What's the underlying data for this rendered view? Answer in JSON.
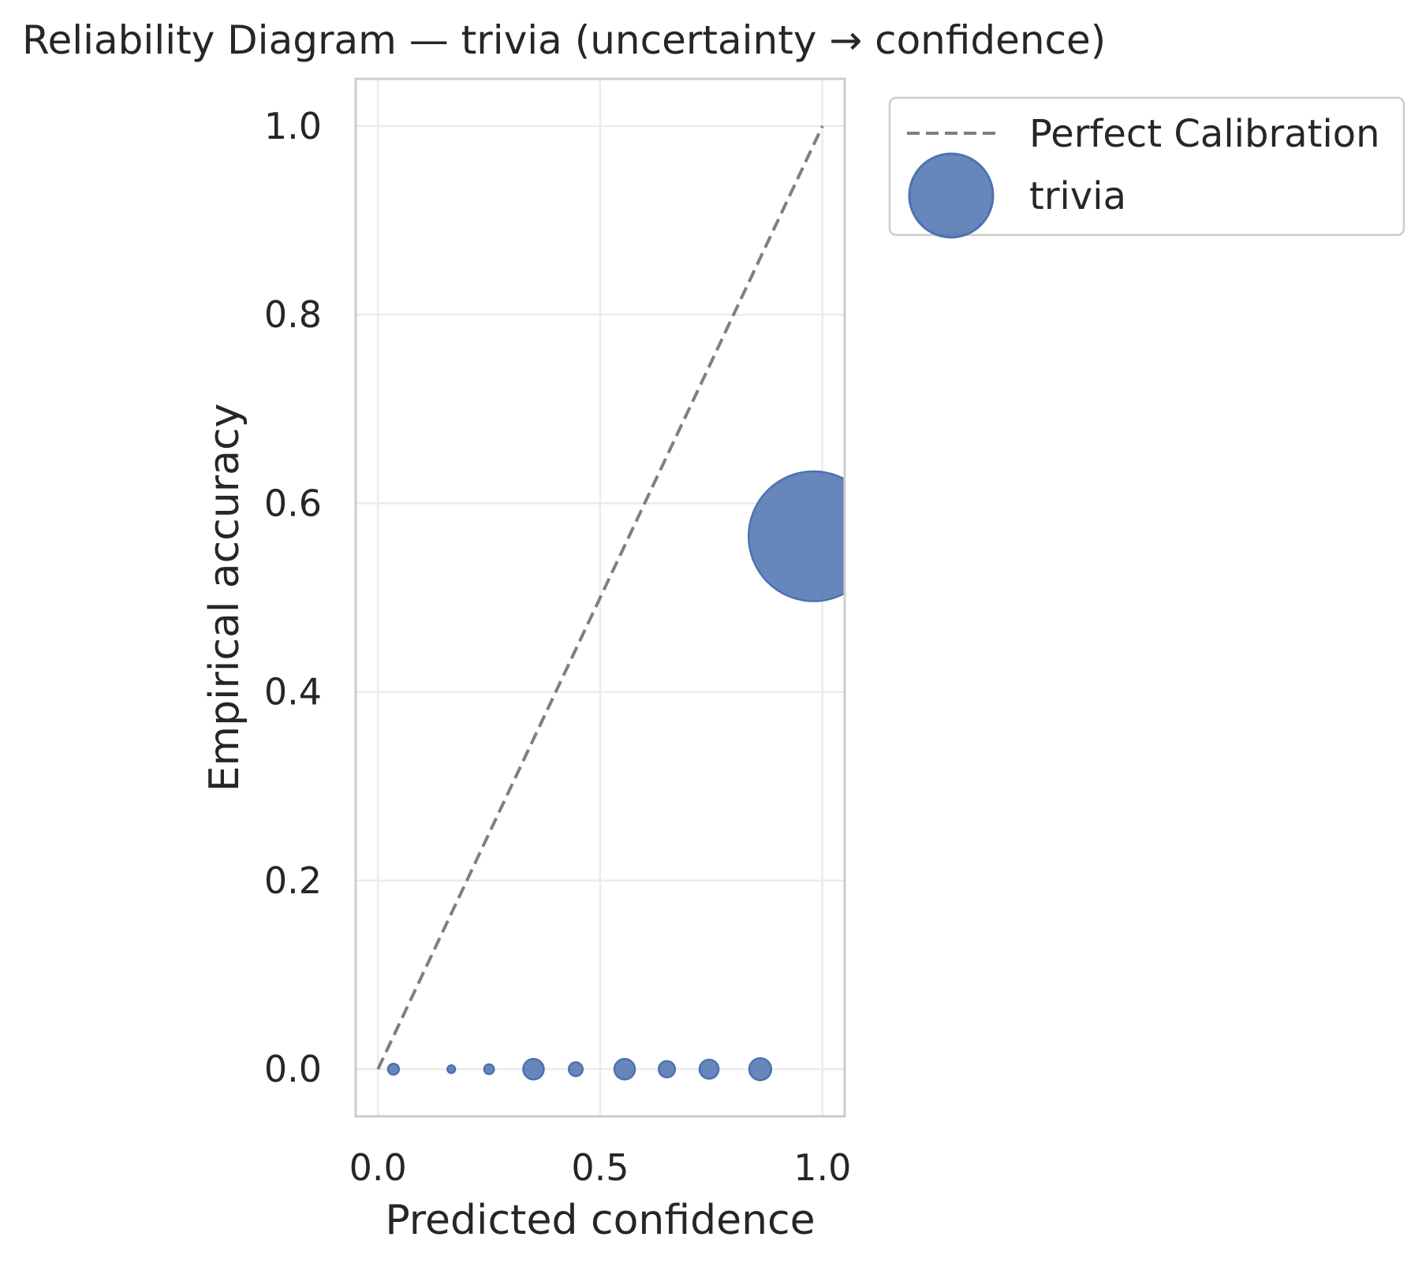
{
  "chart_data": {
    "type": "scatter",
    "title": "Reliability Diagram — trivia (uncertainty → confidence)",
    "xlabel": "Predicted confidence",
    "ylabel": "Empirical accuracy",
    "xlim": [
      -0.05,
      1.05
    ],
    "ylim": [
      -0.05,
      1.05
    ],
    "xticks": [
      0.0,
      0.5,
      1.0
    ],
    "xtick_labels": [
      "0.0",
      "0.5",
      "1.0"
    ],
    "yticks": [
      0.0,
      0.2,
      0.4,
      0.6,
      0.8,
      1.0
    ],
    "ytick_labels": [
      "0.0",
      "0.2",
      "0.4",
      "0.6",
      "0.8",
      "1.0"
    ],
    "grid": true,
    "legend_position": "outside-upper-right",
    "reference_line": {
      "name": "Perfect Calibration",
      "x": [
        0.0,
        1.0
      ],
      "y": [
        0.0,
        1.0
      ],
      "color": "#7f7f7f",
      "style": "dashed"
    },
    "series": [
      {
        "name": "trivia",
        "color": "#4c72b0",
        "points": [
          {
            "x": 0.035,
            "y": 0.0,
            "size": 10
          },
          {
            "x": 0.165,
            "y": 0.0,
            "size": 5
          },
          {
            "x": 0.25,
            "y": 0.0,
            "size": 8
          },
          {
            "x": 0.35,
            "y": 0.0,
            "size": 35
          },
          {
            "x": 0.445,
            "y": 0.0,
            "size": 16
          },
          {
            "x": 0.555,
            "y": 0.0,
            "size": 35
          },
          {
            "x": 0.65,
            "y": 0.0,
            "size": 22
          },
          {
            "x": 0.745,
            "y": 0.0,
            "size": 30
          },
          {
            "x": 0.86,
            "y": 0.0,
            "size": 40
          },
          {
            "x": 0.98,
            "y": 0.565,
            "size": 1400
          }
        ]
      }
    ]
  }
}
